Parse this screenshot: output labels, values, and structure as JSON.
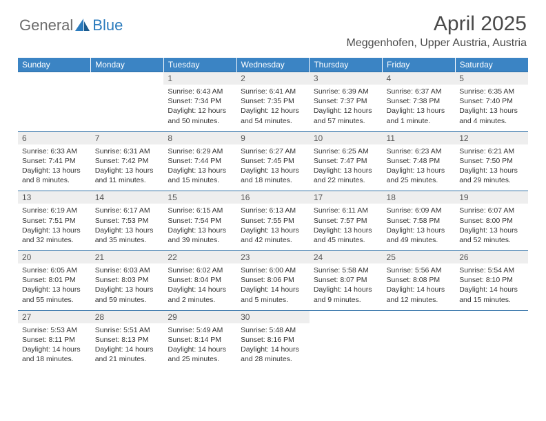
{
  "brand": {
    "part1": "General",
    "part2": "Blue"
  },
  "title": "April 2025",
  "location": "Meggenhofen, Upper Austria, Austria",
  "colors": {
    "header_bg": "#3b84c4",
    "daynum_bg": "#eeeeee",
    "rule": "#2f6fa6"
  },
  "weekdays": [
    "Sunday",
    "Monday",
    "Tuesday",
    "Wednesday",
    "Thursday",
    "Friday",
    "Saturday"
  ],
  "weeks": [
    [
      null,
      null,
      {
        "n": "1",
        "sr": "Sunrise: 6:43 AM",
        "ss": "Sunset: 7:34 PM",
        "dl": "Daylight: 12 hours and 50 minutes."
      },
      {
        "n": "2",
        "sr": "Sunrise: 6:41 AM",
        "ss": "Sunset: 7:35 PM",
        "dl": "Daylight: 12 hours and 54 minutes."
      },
      {
        "n": "3",
        "sr": "Sunrise: 6:39 AM",
        "ss": "Sunset: 7:37 PM",
        "dl": "Daylight: 12 hours and 57 minutes."
      },
      {
        "n": "4",
        "sr": "Sunrise: 6:37 AM",
        "ss": "Sunset: 7:38 PM",
        "dl": "Daylight: 13 hours and 1 minute."
      },
      {
        "n": "5",
        "sr": "Sunrise: 6:35 AM",
        "ss": "Sunset: 7:40 PM",
        "dl": "Daylight: 13 hours and 4 minutes."
      }
    ],
    [
      {
        "n": "6",
        "sr": "Sunrise: 6:33 AM",
        "ss": "Sunset: 7:41 PM",
        "dl": "Daylight: 13 hours and 8 minutes."
      },
      {
        "n": "7",
        "sr": "Sunrise: 6:31 AM",
        "ss": "Sunset: 7:42 PM",
        "dl": "Daylight: 13 hours and 11 minutes."
      },
      {
        "n": "8",
        "sr": "Sunrise: 6:29 AM",
        "ss": "Sunset: 7:44 PM",
        "dl": "Daylight: 13 hours and 15 minutes."
      },
      {
        "n": "9",
        "sr": "Sunrise: 6:27 AM",
        "ss": "Sunset: 7:45 PM",
        "dl": "Daylight: 13 hours and 18 minutes."
      },
      {
        "n": "10",
        "sr": "Sunrise: 6:25 AM",
        "ss": "Sunset: 7:47 PM",
        "dl": "Daylight: 13 hours and 22 minutes."
      },
      {
        "n": "11",
        "sr": "Sunrise: 6:23 AM",
        "ss": "Sunset: 7:48 PM",
        "dl": "Daylight: 13 hours and 25 minutes."
      },
      {
        "n": "12",
        "sr": "Sunrise: 6:21 AM",
        "ss": "Sunset: 7:50 PM",
        "dl": "Daylight: 13 hours and 29 minutes."
      }
    ],
    [
      {
        "n": "13",
        "sr": "Sunrise: 6:19 AM",
        "ss": "Sunset: 7:51 PM",
        "dl": "Daylight: 13 hours and 32 minutes."
      },
      {
        "n": "14",
        "sr": "Sunrise: 6:17 AM",
        "ss": "Sunset: 7:53 PM",
        "dl": "Daylight: 13 hours and 35 minutes."
      },
      {
        "n": "15",
        "sr": "Sunrise: 6:15 AM",
        "ss": "Sunset: 7:54 PM",
        "dl": "Daylight: 13 hours and 39 minutes."
      },
      {
        "n": "16",
        "sr": "Sunrise: 6:13 AM",
        "ss": "Sunset: 7:55 PM",
        "dl": "Daylight: 13 hours and 42 minutes."
      },
      {
        "n": "17",
        "sr": "Sunrise: 6:11 AM",
        "ss": "Sunset: 7:57 PM",
        "dl": "Daylight: 13 hours and 45 minutes."
      },
      {
        "n": "18",
        "sr": "Sunrise: 6:09 AM",
        "ss": "Sunset: 7:58 PM",
        "dl": "Daylight: 13 hours and 49 minutes."
      },
      {
        "n": "19",
        "sr": "Sunrise: 6:07 AM",
        "ss": "Sunset: 8:00 PM",
        "dl": "Daylight: 13 hours and 52 minutes."
      }
    ],
    [
      {
        "n": "20",
        "sr": "Sunrise: 6:05 AM",
        "ss": "Sunset: 8:01 PM",
        "dl": "Daylight: 13 hours and 55 minutes."
      },
      {
        "n": "21",
        "sr": "Sunrise: 6:03 AM",
        "ss": "Sunset: 8:03 PM",
        "dl": "Daylight: 13 hours and 59 minutes."
      },
      {
        "n": "22",
        "sr": "Sunrise: 6:02 AM",
        "ss": "Sunset: 8:04 PM",
        "dl": "Daylight: 14 hours and 2 minutes."
      },
      {
        "n": "23",
        "sr": "Sunrise: 6:00 AM",
        "ss": "Sunset: 8:06 PM",
        "dl": "Daylight: 14 hours and 5 minutes."
      },
      {
        "n": "24",
        "sr": "Sunrise: 5:58 AM",
        "ss": "Sunset: 8:07 PM",
        "dl": "Daylight: 14 hours and 9 minutes."
      },
      {
        "n": "25",
        "sr": "Sunrise: 5:56 AM",
        "ss": "Sunset: 8:08 PM",
        "dl": "Daylight: 14 hours and 12 minutes."
      },
      {
        "n": "26",
        "sr": "Sunrise: 5:54 AM",
        "ss": "Sunset: 8:10 PM",
        "dl": "Daylight: 14 hours and 15 minutes."
      }
    ],
    [
      {
        "n": "27",
        "sr": "Sunrise: 5:53 AM",
        "ss": "Sunset: 8:11 PM",
        "dl": "Daylight: 14 hours and 18 minutes."
      },
      {
        "n": "28",
        "sr": "Sunrise: 5:51 AM",
        "ss": "Sunset: 8:13 PM",
        "dl": "Daylight: 14 hours and 21 minutes."
      },
      {
        "n": "29",
        "sr": "Sunrise: 5:49 AM",
        "ss": "Sunset: 8:14 PM",
        "dl": "Daylight: 14 hours and 25 minutes."
      },
      {
        "n": "30",
        "sr": "Sunrise: 5:48 AM",
        "ss": "Sunset: 8:16 PM",
        "dl": "Daylight: 14 hours and 28 minutes."
      },
      null,
      null,
      null
    ]
  ]
}
